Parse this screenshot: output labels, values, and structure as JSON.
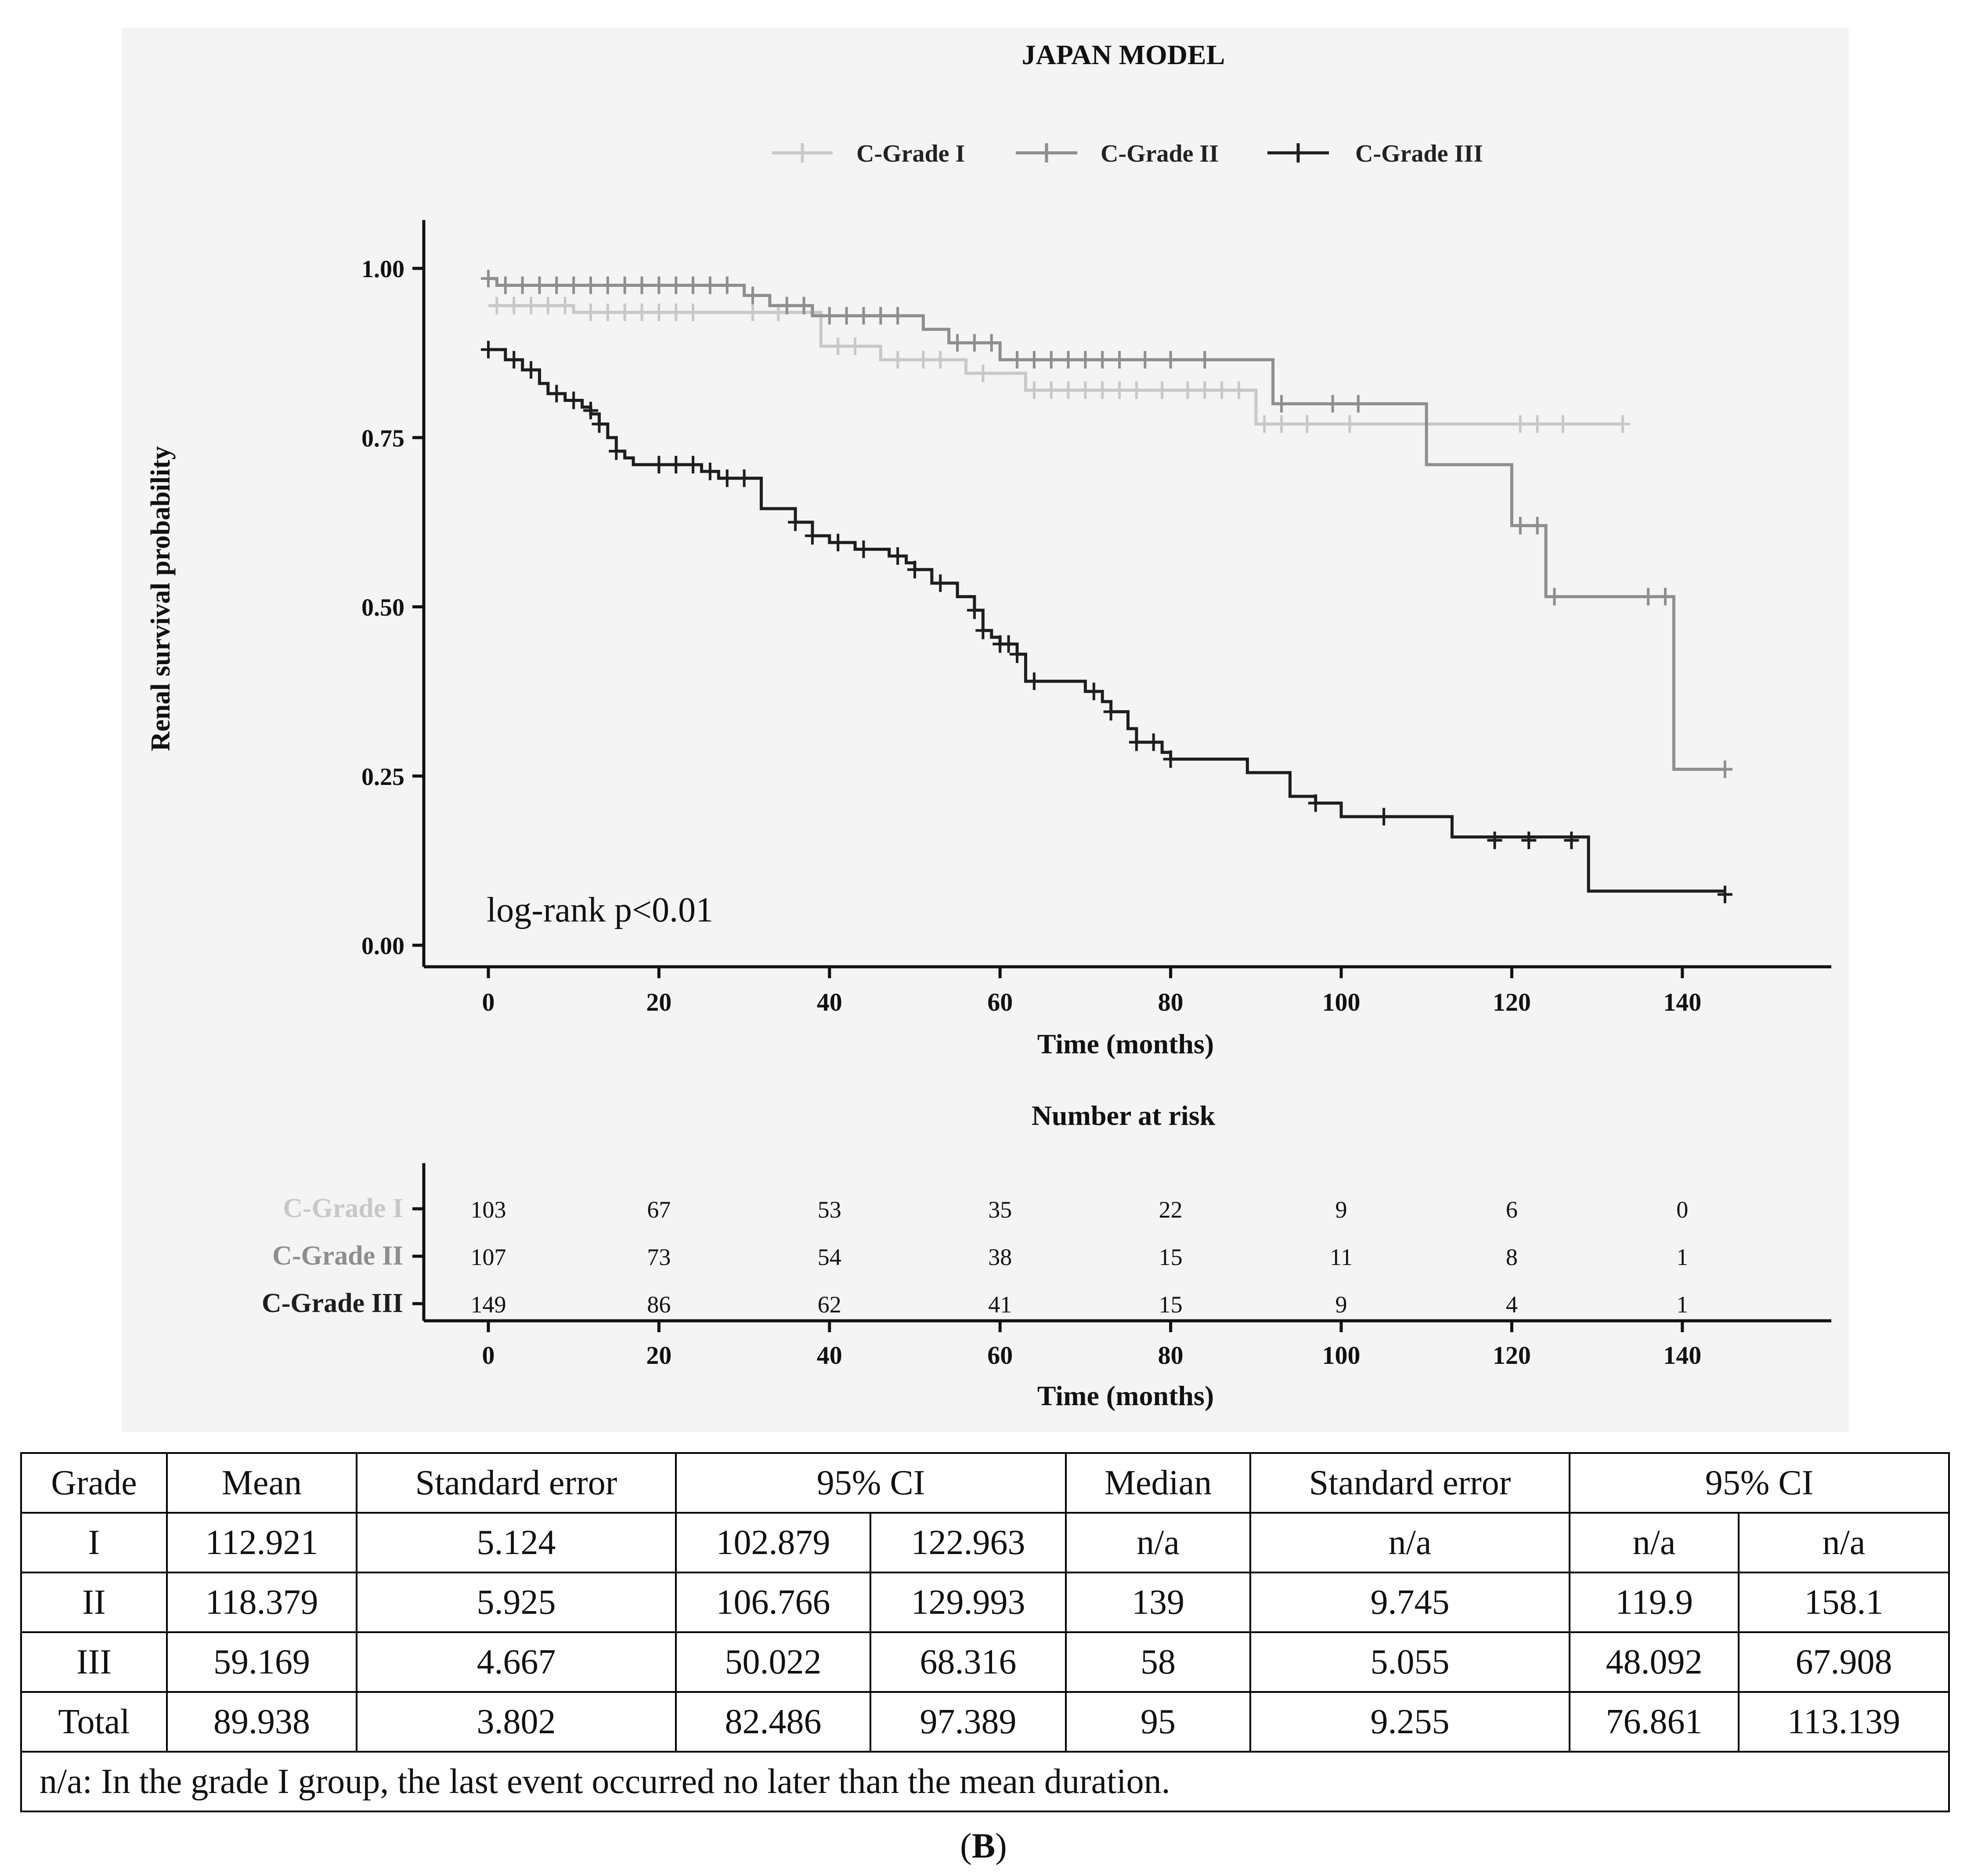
{
  "chart_data": {
    "type": "line",
    "subtype": "kaplan-meier",
    "title": "JAPAN MODEL",
    "xlabel": "Time (months)",
    "ylabel": "Renal survival probability",
    "xlim": [
      -8,
      155
    ],
    "ylim": [
      -0.05,
      1.05
    ],
    "x_ticks": [
      0,
      20,
      40,
      60,
      80,
      100,
      120,
      140
    ],
    "y_ticks": [
      0.0,
      0.25,
      0.5,
      0.75,
      1.0
    ],
    "y_tick_labels": [
      "0.00",
      "0.25",
      "0.50",
      "0.75",
      "1.00"
    ],
    "annotation": "log-rank p<0.01",
    "legend_position": "top",
    "colors": {
      "grade1": "#c8c8c8",
      "grade2": "#8e8e8e",
      "grade3": "#1e1e1e"
    },
    "series": [
      {
        "name": "C-Grade I",
        "key": "grade1",
        "steps": [
          [
            0,
            0.945
          ],
          [
            10,
            0.935
          ],
          [
            29,
            0.935
          ],
          [
            39,
            0.885
          ],
          [
            46,
            0.865
          ],
          [
            56,
            0.845
          ],
          [
            63,
            0.82
          ],
          [
            79,
            0.82
          ],
          [
            90,
            0.77
          ],
          [
            110,
            0.77
          ],
          [
            133,
            0.77
          ]
        ],
        "censored": [
          [
            1,
            0.945
          ],
          [
            3,
            0.945
          ],
          [
            5,
            0.945
          ],
          [
            7,
            0.945
          ],
          [
            9,
            0.945
          ],
          [
            12,
            0.935
          ],
          [
            14,
            0.935
          ],
          [
            16,
            0.935
          ],
          [
            18,
            0.935
          ],
          [
            20,
            0.935
          ],
          [
            22,
            0.935
          ],
          [
            24,
            0.935
          ],
          [
            31,
            0.935
          ],
          [
            34,
            0.935
          ],
          [
            41,
            0.885
          ],
          [
            43,
            0.885
          ],
          [
            48,
            0.865
          ],
          [
            51,
            0.865
          ],
          [
            53,
            0.865
          ],
          [
            58,
            0.845
          ],
          [
            64,
            0.82
          ],
          [
            66,
            0.82
          ],
          [
            68,
            0.82
          ],
          [
            70,
            0.82
          ],
          [
            72,
            0.82
          ],
          [
            74,
            0.82
          ],
          [
            76,
            0.82
          ],
          [
            79,
            0.82
          ],
          [
            82,
            0.82
          ],
          [
            84,
            0.82
          ],
          [
            86,
            0.82
          ],
          [
            88,
            0.82
          ],
          [
            91,
            0.77
          ],
          [
            93,
            0.77
          ],
          [
            96,
            0.77
          ],
          [
            101,
            0.77
          ],
          [
            121,
            0.77
          ],
          [
            123,
            0.77
          ],
          [
            126,
            0.77
          ],
          [
            133,
            0.77
          ]
        ]
      },
      {
        "name": "C-Grade II",
        "key": "grade2",
        "steps": [
          [
            0,
            0.985
          ],
          [
            1,
            0.975
          ],
          [
            30,
            0.96
          ],
          [
            33,
            0.945
          ],
          [
            38,
            0.93
          ],
          [
            51,
            0.91
          ],
          [
            54,
            0.89
          ],
          [
            60,
            0.865
          ],
          [
            92,
            0.8
          ],
          [
            110,
            0.71
          ],
          [
            120,
            0.62
          ],
          [
            124,
            0.515
          ],
          [
            139,
            0.26
          ],
          [
            145,
            0.26
          ]
        ],
        "censored": [
          [
            0,
            0.985
          ],
          [
            2,
            0.975
          ],
          [
            4,
            0.975
          ],
          [
            6,
            0.975
          ],
          [
            8,
            0.975
          ],
          [
            10,
            0.975
          ],
          [
            12,
            0.975
          ],
          [
            14,
            0.975
          ],
          [
            16,
            0.975
          ],
          [
            18,
            0.975
          ],
          [
            20,
            0.975
          ],
          [
            22,
            0.975
          ],
          [
            24,
            0.975
          ],
          [
            26,
            0.975
          ],
          [
            28,
            0.975
          ],
          [
            31,
            0.96
          ],
          [
            35,
            0.945
          ],
          [
            37,
            0.945
          ],
          [
            40,
            0.93
          ],
          [
            42,
            0.93
          ],
          [
            44,
            0.93
          ],
          [
            46,
            0.93
          ],
          [
            48,
            0.93
          ],
          [
            55,
            0.89
          ],
          [
            57,
            0.89
          ],
          [
            59,
            0.89
          ],
          [
            62,
            0.865
          ],
          [
            64,
            0.865
          ],
          [
            66,
            0.865
          ],
          [
            68,
            0.865
          ],
          [
            70,
            0.865
          ],
          [
            72,
            0.865
          ],
          [
            74,
            0.865
          ],
          [
            77,
            0.865
          ],
          [
            80,
            0.865
          ],
          [
            84,
            0.865
          ],
          [
            93,
            0.8
          ],
          [
            99,
            0.8
          ],
          [
            102,
            0.8
          ],
          [
            121,
            0.62
          ],
          [
            123,
            0.62
          ],
          [
            125,
            0.515
          ],
          [
            136,
            0.515
          ],
          [
            138,
            0.515
          ],
          [
            145,
            0.26
          ]
        ]
      },
      {
        "name": "C-Grade III",
        "key": "grade3",
        "steps": [
          [
            0,
            0.88
          ],
          [
            2,
            0.865
          ],
          [
            4,
            0.85
          ],
          [
            6,
            0.83
          ],
          [
            7,
            0.815
          ],
          [
            9,
            0.805
          ],
          [
            11,
            0.795
          ],
          [
            12,
            0.785
          ],
          [
            13,
            0.77
          ],
          [
            14,
            0.75
          ],
          [
            15,
            0.73
          ],
          [
            16,
            0.72
          ],
          [
            17,
            0.71
          ],
          [
            25,
            0.7
          ],
          [
            27,
            0.69
          ],
          [
            32,
            0.645
          ],
          [
            36,
            0.625
          ],
          [
            38,
            0.605
          ],
          [
            40,
            0.595
          ],
          [
            43,
            0.585
          ],
          [
            47,
            0.575
          ],
          [
            49,
            0.565
          ],
          [
            50,
            0.555
          ],
          [
            52,
            0.535
          ],
          [
            55,
            0.515
          ],
          [
            57,
            0.495
          ],
          [
            58,
            0.465
          ],
          [
            59,
            0.455
          ],
          [
            60,
            0.445
          ],
          [
            62,
            0.43
          ],
          [
            63,
            0.39
          ],
          [
            70,
            0.375
          ],
          [
            72,
            0.36
          ],
          [
            73,
            0.345
          ],
          [
            75,
            0.32
          ],
          [
            76,
            0.3
          ],
          [
            79,
            0.285
          ],
          [
            80,
            0.275
          ],
          [
            89,
            0.255
          ],
          [
            94,
            0.22
          ],
          [
            97,
            0.21
          ],
          [
            100,
            0.19
          ],
          [
            113,
            0.16
          ],
          [
            123,
            0.16
          ],
          [
            129,
            0.08
          ],
          [
            145,
            0.08
          ]
        ],
        "censored": [
          [
            0,
            0.88
          ],
          [
            3,
            0.865
          ],
          [
            5,
            0.85
          ],
          [
            8,
            0.815
          ],
          [
            10,
            0.805
          ],
          [
            12,
            0.79
          ],
          [
            13,
            0.77
          ],
          [
            15,
            0.73
          ],
          [
            20,
            0.71
          ],
          [
            22,
            0.71
          ],
          [
            24,
            0.71
          ],
          [
            26,
            0.7
          ],
          [
            28,
            0.69
          ],
          [
            30,
            0.69
          ],
          [
            36,
            0.625
          ],
          [
            38,
            0.605
          ],
          [
            41,
            0.595
          ],
          [
            44,
            0.585
          ],
          [
            48,
            0.575
          ],
          [
            50,
            0.555
          ],
          [
            53,
            0.535
          ],
          [
            57,
            0.495
          ],
          [
            58,
            0.465
          ],
          [
            60,
            0.445
          ],
          [
            61,
            0.445
          ],
          [
            62,
            0.43
          ],
          [
            64,
            0.39
          ],
          [
            71,
            0.375
          ],
          [
            73,
            0.345
          ],
          [
            76,
            0.3
          ],
          [
            78,
            0.3
          ],
          [
            80,
            0.275
          ],
          [
            97,
            0.21
          ],
          [
            105,
            0.19
          ],
          [
            118,
            0.155
          ],
          [
            122,
            0.155
          ],
          [
            127,
            0.155
          ],
          [
            145,
            0.075
          ]
        ]
      }
    ],
    "risk_table": {
      "title": "Number at risk",
      "xlabel": "Time (months)",
      "times": [
        0,
        20,
        40,
        60,
        80,
        100,
        120,
        140
      ],
      "rows": [
        {
          "name": "C-Grade I",
          "key": "grade1",
          "values": [
            "103",
            "67",
            "53",
            "35",
            "22",
            "9",
            "6",
            "0"
          ]
        },
        {
          "name": "C-Grade II",
          "key": "grade2",
          "values": [
            "107",
            "73",
            "54",
            "38",
            "15",
            "11",
            "8",
            "1"
          ]
        },
        {
          "name": "C-Grade III",
          "key": "grade3",
          "values": [
            "149",
            "86",
            "62",
            "41",
            "15",
            "9",
            "4",
            "1"
          ]
        }
      ]
    }
  },
  "table": {
    "header": [
      "Grade",
      "Mean",
      "Standard error",
      "95% CI",
      "Median",
      "Standard error",
      "95% CI"
    ],
    "rows": [
      [
        "I",
        "112.921",
        "5.124",
        "102.879",
        "122.963",
        "n/a",
        "n/a",
        "n/a",
        "n/a"
      ],
      [
        "II",
        "118.379",
        "5.925",
        "106.766",
        "129.993",
        "139",
        "9.745",
        "119.9",
        "158.1"
      ],
      [
        "III",
        "59.169",
        "4.667",
        "50.022",
        "68.316",
        "58",
        "5.055",
        "48.092",
        "67.908"
      ],
      [
        "Total",
        "89.938",
        "3.802",
        "82.486",
        "97.389",
        "95",
        "9.255",
        "76.861",
        "113.139"
      ]
    ],
    "note": "n/a: In the grade I group, the last event occurred no later than the mean duration."
  },
  "panel_label": "B"
}
